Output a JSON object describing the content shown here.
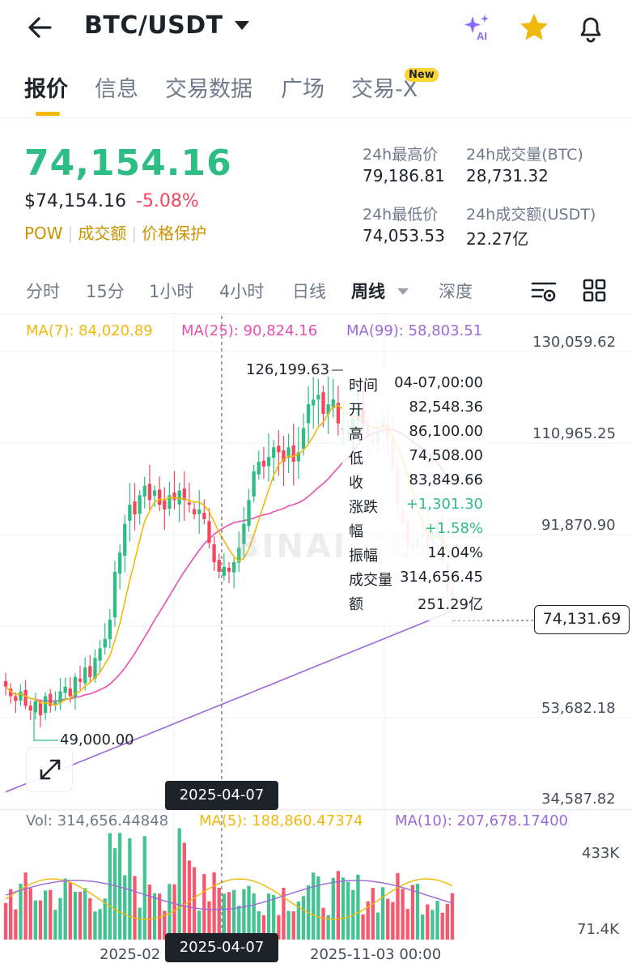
{
  "header": {
    "pair": "BTC/USDT",
    "icons": [
      "back-arrow-icon",
      "ai-sparkle-icon",
      "star-icon",
      "bell-icon"
    ]
  },
  "tabs": [
    {
      "label": "报价",
      "active": true
    },
    {
      "label": "信息",
      "active": false
    },
    {
      "label": "交易数据",
      "active": false
    },
    {
      "label": "广场",
      "active": false
    },
    {
      "label": "交易-X",
      "active": false,
      "badge": "New"
    }
  ],
  "price": {
    "last": "74,154.16",
    "fiat": "$74,154.16",
    "change": "-5.08%",
    "tags": [
      "POW",
      "成交额",
      "价格保护"
    ]
  },
  "stats": {
    "high_label": "24h最高价",
    "high_value": "79,186.81",
    "vol_btc_label": "24h成交量(BTC)",
    "vol_btc_value": "28,731.32",
    "low_label": "24h最低价",
    "low_value": "74,053.53",
    "vol_usdt_label": "24h成交额(USDT)",
    "vol_usdt_value": "22.27亿"
  },
  "intervals": [
    {
      "label": "分时"
    },
    {
      "label": "15分"
    },
    {
      "label": "1小时"
    },
    {
      "label": "4小时"
    },
    {
      "label": "日线"
    },
    {
      "label": "周线",
      "active": true
    },
    {
      "label": "深度"
    }
  ],
  "ma": {
    "ma7": "MA(7): 84,020.89",
    "ma25": "MA(25): 90,824.16",
    "ma99": "MA(99): 58,803.51"
  },
  "volume_legend": {
    "vol": "Vol: 314,656.44848",
    "ma5": "MA(5): 188,860.47374",
    "ma10": "MA(10): 207,678.17400"
  },
  "axis": {
    "price_ticks": [
      "130,059.62",
      "110,965.25",
      "91,870.90",
      "74,131.69",
      "53,682.18",
      "34,587.82"
    ],
    "volume_ticks": [
      "433K",
      "71.4K"
    ],
    "x_labels": [
      "2025-02",
      "2025-04-07",
      "2025-11-03 00:00"
    ]
  },
  "markers": {
    "high": "126,199.63",
    "low": "49,000.00",
    "crosshair_date": "2025-04-07",
    "current_price": "74,131.69"
  },
  "watermark": "BINANCE",
  "tooltip": [
    {
      "k": "时间",
      "v": "04-07,00:00"
    },
    {
      "k": "开",
      "v": "82,548.36"
    },
    {
      "k": "高",
      "v": "86,100.00"
    },
    {
      "k": "低",
      "v": "74,508.00"
    },
    {
      "k": "收",
      "v": "83,849.66"
    },
    {
      "k": "涨跌",
      "v": "+1,301.30",
      "up": true
    },
    {
      "k": "幅",
      "v": "+1.58%",
      "up": true
    },
    {
      "k": "振幅",
      "v": "14.04%"
    },
    {
      "k": "成交量",
      "v": "314,656.45"
    },
    {
      "k": "额",
      "v": "251.29亿"
    }
  ],
  "colors": {
    "up": "#2ebd85",
    "down": "#f6465d",
    "accent": "#f0b90b",
    "ma7": "#f0b90b",
    "ma25": "#e84fb0",
    "ma99": "#9b6ad6"
  },
  "chart_data": {
    "type": "candlestick",
    "timeframe": "weekly",
    "y_range": [
      34587.82,
      130059.62
    ],
    "candles_trend": [
      58000,
      56000,
      55000,
      57000,
      54000,
      53000,
      55000,
      52000,
      56000,
      54000,
      55000,
      57000,
      58000,
      56000,
      60000,
      59000,
      62000,
      60000,
      64000,
      66000,
      68000,
      72000,
      82000,
      86000,
      92000,
      96000,
      94000,
      98000,
      100000,
      97000,
      99000,
      96000,
      95000,
      98000,
      97000,
      99000,
      97000,
      96000,
      94000,
      95000,
      93000,
      88000,
      84000,
      82000,
      83000,
      82000,
      84000,
      87000,
      92000,
      97000,
      103000,
      105000,
      104000,
      106000,
      108000,
      107000,
      105000,
      108000,
      105000,
      107000,
      112000,
      117000,
      118000,
      119000,
      115000,
      117000,
      118000,
      113000,
      112000,
      111000,
      114000,
      116000,
      113000,
      110000,
      109000,
      112000,
      114000,
      110000,
      104000,
      96000,
      92000,
      88000,
      87000,
      89000,
      90000,
      88000,
      90000,
      92000,
      84000,
      78000,
      74154
    ]
  }
}
